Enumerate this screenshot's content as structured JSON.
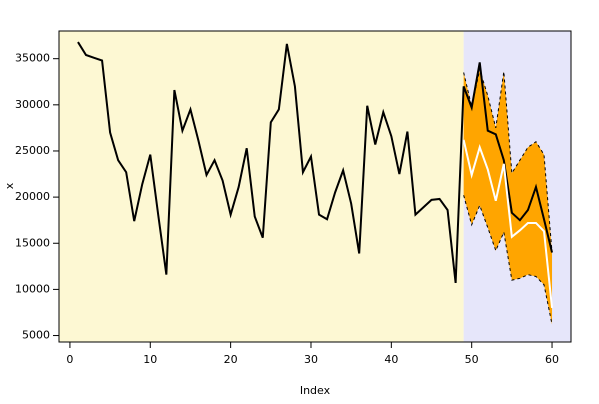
{
  "chart_data": {
    "type": "line",
    "xlabel": "Index",
    "ylabel": "x",
    "x": [
      1,
      2,
      3,
      4,
      5,
      6,
      7,
      8,
      9,
      10,
      11,
      12,
      13,
      14,
      15,
      16,
      17,
      18,
      19,
      20,
      21,
      22,
      23,
      24,
      25,
      26,
      27,
      28,
      29,
      30,
      31,
      32,
      33,
      34,
      35,
      36,
      37,
      38,
      39,
      40,
      41,
      42,
      43,
      44,
      45,
      46,
      47,
      48,
      49,
      50,
      51,
      52,
      53,
      54,
      55,
      56,
      57,
      58,
      59,
      60
    ],
    "xlim": [
      -1.36,
      62.36
    ],
    "ylim": [
      4300,
      38000
    ],
    "xticks": [
      0,
      10,
      20,
      30,
      40,
      50,
      60
    ],
    "yticks": [
      5000,
      10000,
      15000,
      20000,
      25000,
      30000,
      35000
    ],
    "background_colors": [
      "#fdf8d3",
      "#e6e6fa"
    ],
    "band_color": "#ffa500",
    "series": [
      {
        "color": "#000000",
        "values": [
          36800,
          35400,
          35100,
          34800,
          27000,
          24000,
          22700,
          17400,
          21400,
          24600,
          18000,
          11600,
          31600,
          27200,
          29500,
          26100,
          22400,
          24000,
          21800,
          18100,
          21100,
          25300,
          17900,
          15600,
          28100,
          29500,
          36600,
          32000,
          22700,
          24400,
          18100,
          17600,
          20500,
          22900,
          19300,
          13900,
          29900,
          25700,
          29200,
          26600,
          22500,
          27100,
          18100,
          18900,
          19700,
          19800,
          18600,
          10700,
          32000,
          29700,
          34600,
          27200,
          26800,
          24000,
          18300,
          17500,
          18600,
          21100,
          17600,
          14000
        ]
      },
      {
        "color": "#ffffff",
        "values": [
          null,
          null,
          null,
          null,
          null,
          null,
          null,
          null,
          null,
          null,
          null,
          null,
          null,
          null,
          null,
          null,
          null,
          null,
          null,
          null,
          null,
          null,
          null,
          null,
          null,
          null,
          null,
          null,
          null,
          null,
          null,
          null,
          null,
          null,
          null,
          null,
          null,
          null,
          null,
          null,
          null,
          null,
          null,
          null,
          null,
          null,
          null,
          null,
          26200,
          22400,
          25400,
          23000,
          19600,
          23600,
          15700,
          16400,
          17200,
          17200,
          16300,
          8000
        ]
      },
      {
        "color": "#000000",
        "dash": true,
        "values": [
          null,
          null,
          null,
          null,
          null,
          null,
          null,
          null,
          null,
          null,
          null,
          null,
          null,
          null,
          null,
          null,
          null,
          null,
          null,
          null,
          null,
          null,
          null,
          null,
          null,
          null,
          null,
          null,
          null,
          null,
          null,
          null,
          null,
          null,
          null,
          null,
          null,
          null,
          null,
          null,
          null,
          null,
          null,
          null,
          null,
          null,
          null,
          null,
          33500,
          29800,
          33800,
          31000,
          27500,
          33600,
          22600,
          24000,
          25400,
          26000,
          24600,
          14000
        ]
      },
      {
        "color": "#000000",
        "dash": true,
        "values": [
          null,
          null,
          null,
          null,
          null,
          null,
          null,
          null,
          null,
          null,
          null,
          null,
          null,
          null,
          null,
          null,
          null,
          null,
          null,
          null,
          null,
          null,
          null,
          null,
          null,
          null,
          null,
          null,
          null,
          null,
          null,
          null,
          null,
          null,
          null,
          null,
          null,
          null,
          null,
          null,
          null,
          null,
          null,
          null,
          null,
          null,
          null,
          null,
          20200,
          17000,
          19100,
          16700,
          14200,
          16200,
          11000,
          11200,
          11600,
          11400,
          10500,
          6200
        ]
      }
    ]
  }
}
